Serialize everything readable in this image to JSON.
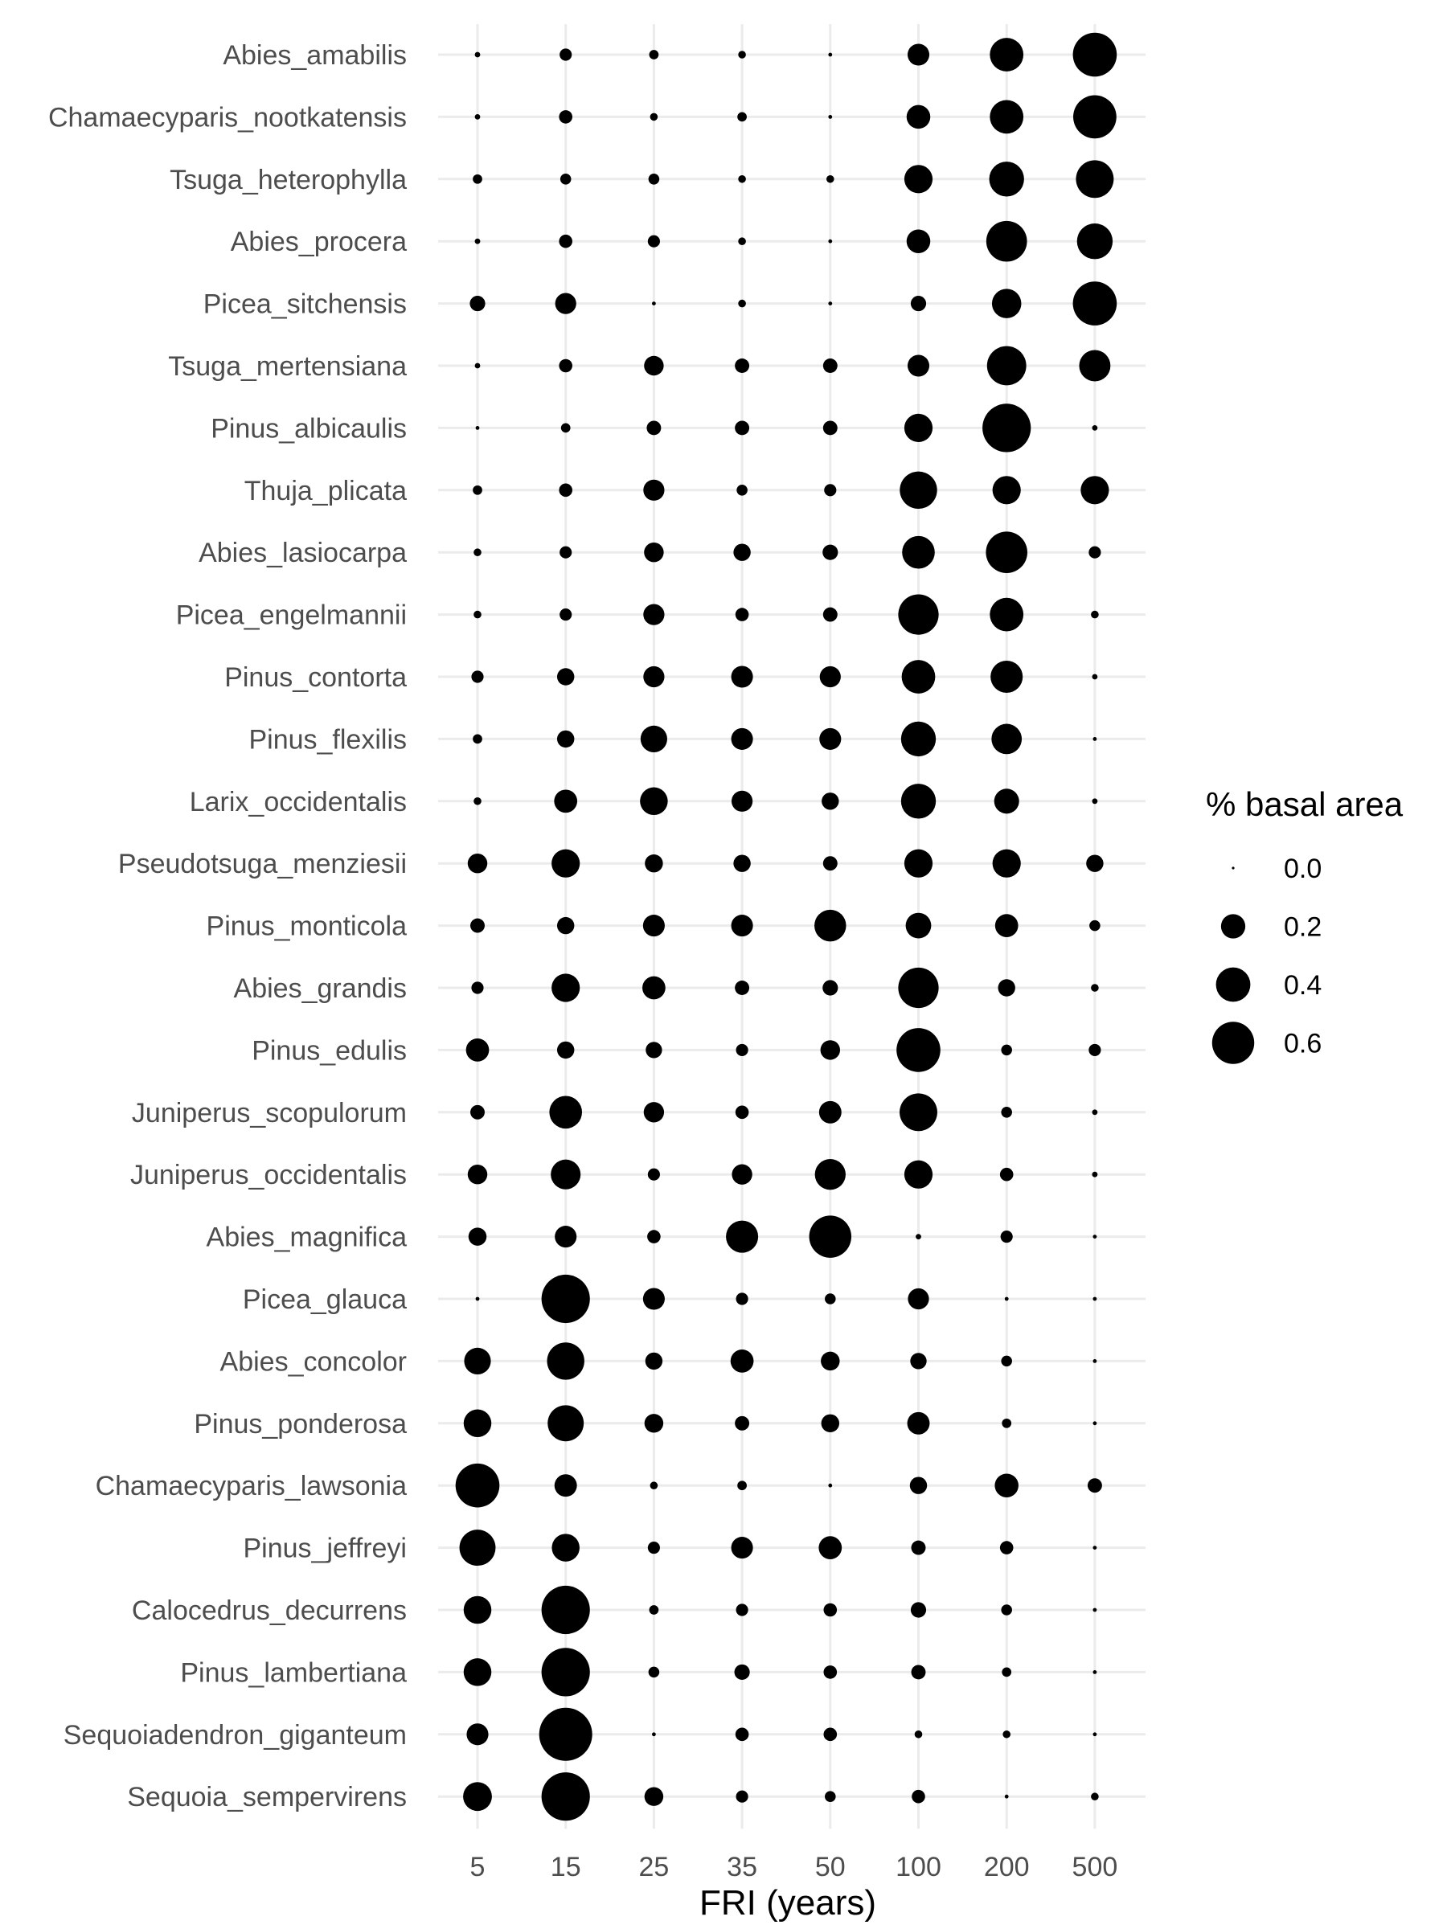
{
  "chart_data": {
    "type": "scatter",
    "subtype": "bubble-grid",
    "xlabel": "FRI (years)",
    "ylabel": "",
    "x_categories": [
      "5",
      "15",
      "25",
      "35",
      "50",
      "100",
      "200",
      "500"
    ],
    "y_categories": [
      "Abies_amabilis",
      "Chamaecyparis_nootkatensis",
      "Tsuga_heterophylla",
      "Abies_procera",
      "Picea_sitchensis",
      "Tsuga_mertensiana",
      "Pinus_albicaulis",
      "Thuja_plicata",
      "Abies_lasiocarpa",
      "Picea_engelmannii",
      "Pinus_contorta",
      "Pinus_flexilis",
      "Larix_occidentalis",
      "Pseudotsuga_menziesii",
      "Pinus_monticola",
      "Abies_grandis",
      "Pinus_edulis",
      "Juniperus_scopulorum",
      "Juniperus_occidentalis",
      "Abies_magnifica",
      "Picea_glauca",
      "Abies_concolor",
      "Pinus_ponderosa",
      "Chamaecyparis_lawsonia",
      "Pinus_jeffreyi",
      "Calocedrus_decurrens",
      "Pinus_lambertiana",
      "Sequoiadendron_giganteum",
      "Sequoia_sempervirens"
    ],
    "values": [
      [
        0.01,
        0.05,
        0.03,
        0.02,
        0.005,
        0.16,
        0.38,
        0.65
      ],
      [
        0.01,
        0.06,
        0.02,
        0.03,
        0.005,
        0.19,
        0.38,
        0.63
      ],
      [
        0.03,
        0.04,
        0.04,
        0.02,
        0.02,
        0.27,
        0.41,
        0.48
      ],
      [
        0.01,
        0.06,
        0.05,
        0.02,
        0.005,
        0.19,
        0.56,
        0.43
      ],
      [
        0.08,
        0.15,
        0.005,
        0.02,
        0.005,
        0.08,
        0.29,
        0.65
      ],
      [
        0.01,
        0.06,
        0.13,
        0.07,
        0.07,
        0.16,
        0.52,
        0.33
      ],
      [
        0.005,
        0.03,
        0.07,
        0.07,
        0.07,
        0.27,
        0.79,
        0.01
      ],
      [
        0.03,
        0.06,
        0.15,
        0.04,
        0.05,
        0.47,
        0.27,
        0.27
      ],
      [
        0.02,
        0.05,
        0.13,
        0.1,
        0.08,
        0.36,
        0.58,
        0.05
      ],
      [
        0.02,
        0.05,
        0.15,
        0.06,
        0.07,
        0.55,
        0.38,
        0.02
      ],
      [
        0.05,
        0.1,
        0.15,
        0.16,
        0.15,
        0.38,
        0.35,
        0.01
      ],
      [
        0.03,
        0.1,
        0.24,
        0.16,
        0.16,
        0.41,
        0.31,
        0.005
      ],
      [
        0.02,
        0.18,
        0.26,
        0.15,
        0.1,
        0.41,
        0.21,
        0.01
      ],
      [
        0.13,
        0.27,
        0.11,
        0.1,
        0.07,
        0.27,
        0.27,
        0.1
      ],
      [
        0.07,
        0.1,
        0.16,
        0.16,
        0.34,
        0.22,
        0.18,
        0.04
      ],
      [
        0.05,
        0.27,
        0.18,
        0.07,
        0.08,
        0.55,
        0.1,
        0.02
      ],
      [
        0.18,
        0.1,
        0.09,
        0.05,
        0.13,
        0.65,
        0.04,
        0.05
      ],
      [
        0.07,
        0.36,
        0.14,
        0.06,
        0.17,
        0.48,
        0.04,
        0.01
      ],
      [
        0.13,
        0.3,
        0.05,
        0.14,
        0.32,
        0.27,
        0.06,
        0.01
      ],
      [
        0.11,
        0.16,
        0.06,
        0.35,
        0.6,
        0.01,
        0.05,
        0.005
      ],
      [
        0.005,
        0.79,
        0.16,
        0.05,
        0.04,
        0.15,
        0.005,
        0.005
      ],
      [
        0.24,
        0.47,
        0.1,
        0.18,
        0.12,
        0.09,
        0.04,
        0.005
      ],
      [
        0.26,
        0.44,
        0.12,
        0.07,
        0.11,
        0.17,
        0.03,
        0.005
      ],
      [
        0.65,
        0.17,
        0.02,
        0.03,
        0.005,
        0.1,
        0.19,
        0.07
      ],
      [
        0.44,
        0.26,
        0.05,
        0.16,
        0.18,
        0.07,
        0.06,
        0.005
      ],
      [
        0.26,
        0.79,
        0.03,
        0.05,
        0.06,
        0.08,
        0.04,
        0.005
      ],
      [
        0.26,
        0.79,
        0.04,
        0.08,
        0.06,
        0.07,
        0.03,
        0.005
      ],
      [
        0.16,
        0.95,
        0.005,
        0.06,
        0.06,
        0.02,
        0.02,
        0.005
      ],
      [
        0.28,
        0.79,
        0.12,
        0.05,
        0.04,
        0.06,
        0.005,
        0.02
      ]
    ],
    "size_legend": {
      "title": "% basal area",
      "labels": [
        "0.0",
        "0.2",
        "0.4",
        "0.6"
      ],
      "values": [
        0.0,
        0.2,
        0.4,
        0.6
      ]
    },
    "grid": true,
    "legend_position": "right",
    "colors": {
      "point": "#000000",
      "grid": "#ebebeb",
      "axis_text": "#4d4d4d",
      "title_text": "#000000"
    }
  }
}
